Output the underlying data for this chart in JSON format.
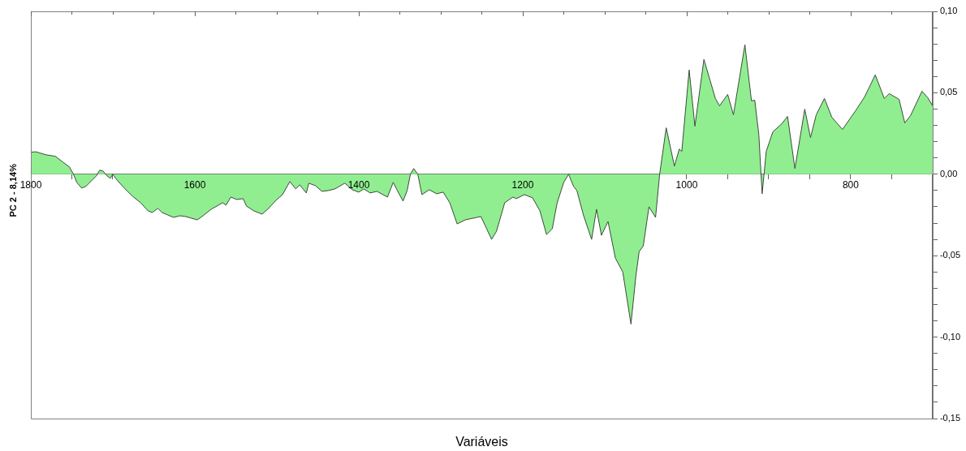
{
  "chart_data": {
    "type": "area",
    "xlabel": "Variáveis",
    "ylabel": "PC 2 - 8,14%",
    "series": [
      {
        "color": "#90ee90",
        "x": [
          1800,
          1794,
          1782,
          1770,
          1761,
          1753,
          1748,
          1744,
          1738,
          1733,
          1725,
          1720,
          1716,
          1712,
          1707,
          1703,
          1700,
          1695,
          1686,
          1676,
          1666,
          1657,
          1652,
          1645,
          1640,
          1633,
          1626,
          1618,
          1611,
          1597,
          1590,
          1580,
          1566,
          1562,
          1556,
          1549,
          1541,
          1537,
          1528,
          1518,
          1511,
          1501,
          1493,
          1484,
          1477,
          1472,
          1464,
          1461,
          1453,
          1445,
          1437,
          1429,
          1417,
          1408,
          1400,
          1394,
          1386,
          1378,
          1365,
          1358,
          1353,
          1346,
          1341,
          1337,
          1333,
          1328,
          1323,
          1314,
          1305,
          1297,
          1289,
          1280,
          1270,
          1256,
          1251,
          1244,
          1238,
          1232,
          1222,
          1212,
          1208,
          1198,
          1188,
          1179,
          1171,
          1164,
          1158,
          1150,
          1144,
          1138,
          1134,
          1126,
          1116,
          1110,
          1104,
          1096,
          1087,
          1078,
          1068,
          1062,
          1058,
          1053,
          1046,
          1038,
          1033,
          1025,
          1015,
          1009,
          1006,
          997,
          990,
          979,
          965,
          960,
          950,
          943,
          929,
          921,
          917,
          912,
          908,
          903,
          895,
          884,
          877,
          868,
          856,
          849,
          842,
          832,
          823,
          810,
          801,
          794,
          783,
          770,
          759,
          753,
          741,
          734,
          727,
          713,
          706,
          700
        ],
        "values": [
          0.0135,
          0.0138,
          0.012,
          0.011,
          0.0075,
          0.0045,
          0,
          -0.005,
          -0.0085,
          -0.0075,
          -0.0035,
          -0.001,
          0.0025,
          0.002,
          -0.001,
          -0.0025,
          0,
          -0.0035,
          -0.0085,
          -0.0135,
          -0.0175,
          -0.0225,
          -0.0235,
          -0.021,
          -0.0235,
          -0.025,
          -0.0265,
          -0.0255,
          -0.026,
          -0.028,
          -0.0255,
          -0.0215,
          -0.0175,
          -0.019,
          -0.014,
          -0.0155,
          -0.015,
          -0.0195,
          -0.0225,
          -0.0245,
          -0.0215,
          -0.016,
          -0.0125,
          -0.0045,
          -0.009,
          -0.0065,
          -0.0115,
          -0.0055,
          -0.007,
          -0.0105,
          -0.01,
          -0.009,
          -0.0055,
          -0.0095,
          -0.011,
          -0.009,
          -0.0115,
          -0.0105,
          -0.014,
          -0.005,
          -0.01,
          -0.0165,
          -0.01,
          0,
          0.0035,
          0,
          -0.0125,
          -0.0095,
          -0.012,
          -0.011,
          -0.0175,
          -0.0305,
          -0.028,
          -0.0265,
          -0.026,
          -0.0335,
          -0.04,
          -0.035,
          -0.0175,
          -0.014,
          -0.015,
          -0.0125,
          -0.0145,
          -0.0225,
          -0.037,
          -0.0335,
          -0.0175,
          -0.005,
          0,
          -0.0075,
          -0.01,
          -0.025,
          -0.04,
          -0.0215,
          -0.0375,
          -0.029,
          -0.0515,
          -0.06,
          -0.092,
          -0.0625,
          -0.0475,
          -0.044,
          -0.02,
          -0.0265,
          0,
          0.0285,
          0.005,
          0.0155,
          0.014,
          0.064,
          0.0295,
          0.0705,
          0.0465,
          0.042,
          0.049,
          0.0365,
          0.0795,
          0.045,
          0.0455,
          0.024,
          -0.012,
          0.014,
          0.026,
          0.031,
          0.0355,
          0.0035,
          0.04,
          0.0225,
          0.0365,
          0.0465,
          0.035,
          0.0275,
          0.034,
          0.039,
          0.0475,
          0.061,
          0.0465,
          0.0495,
          0.046,
          0.0315,
          0.036,
          0.051,
          0.047,
          0.042
        ]
      }
    ],
    "xlim": [
      1800,
      700
    ],
    "xticks": [
      1800,
      {
        "value": 1750,
        "label": null
      },
      {
        "value": 1700,
        "label": null
      },
      {
        "value": 1650,
        "label": null
      },
      1600,
      {
        "value": 1550,
        "label": null
      },
      {
        "value": 1500,
        "label": null
      },
      {
        "value": 1450,
        "label": null
      },
      1400,
      {
        "value": 1350,
        "label": null
      },
      {
        "value": 1300,
        "label": null
      },
      {
        "value": 1250,
        "label": null
      },
      1200,
      {
        "value": 1150,
        "label": null
      },
      {
        "value": 1100,
        "label": null
      },
      {
        "value": 1050,
        "label": null
      },
      1000,
      {
        "value": 950,
        "label": null
      },
      {
        "value": 900,
        "label": null
      },
      {
        "value": 850,
        "label": null
      },
      800,
      {
        "value": 750,
        "label": null
      }
    ],
    "ylim": [
      -0.15,
      0.1
    ],
    "yticks": [
      {
        "value": 0.1,
        "label": "0,10"
      },
      {
        "value": 0.05,
        "label": "0,05"
      },
      {
        "value": 0,
        "label": "0,00"
      },
      {
        "value": -0.05,
        "label": "-0,05"
      },
      {
        "value": -0.1,
        "label": "-0,10"
      },
      {
        "value": -0.15,
        "label": "-0,15"
      },
      {
        "value": 0.09,
        "label": null
      },
      {
        "value": 0.08,
        "label": null
      },
      {
        "value": 0.07,
        "label": null
      },
      {
        "value": 0.06,
        "label": null
      },
      {
        "value": 0.04,
        "label": null
      },
      {
        "value": 0.03,
        "label": null
      },
      {
        "value": 0.02,
        "label": null
      },
      {
        "value": 0.01,
        "label": null
      },
      {
        "value": -0.01,
        "label": null
      },
      {
        "value": -0.02,
        "label": null
      },
      {
        "value": -0.03,
        "label": null
      },
      {
        "value": -0.04,
        "label": null
      },
      {
        "value": -0.06,
        "label": null
      },
      {
        "value": -0.07,
        "label": null
      },
      {
        "value": -0.08,
        "label": null
      },
      {
        "value": -0.09,
        "label": null
      },
      {
        "value": -0.11,
        "label": null
      },
      {
        "value": -0.12,
        "label": null
      },
      {
        "value": -0.13,
        "label": null
      },
      {
        "value": -0.14,
        "label": null
      }
    ],
    "grid": false,
    "legend": false,
    "marker": "none",
    "line_style": "solid"
  }
}
